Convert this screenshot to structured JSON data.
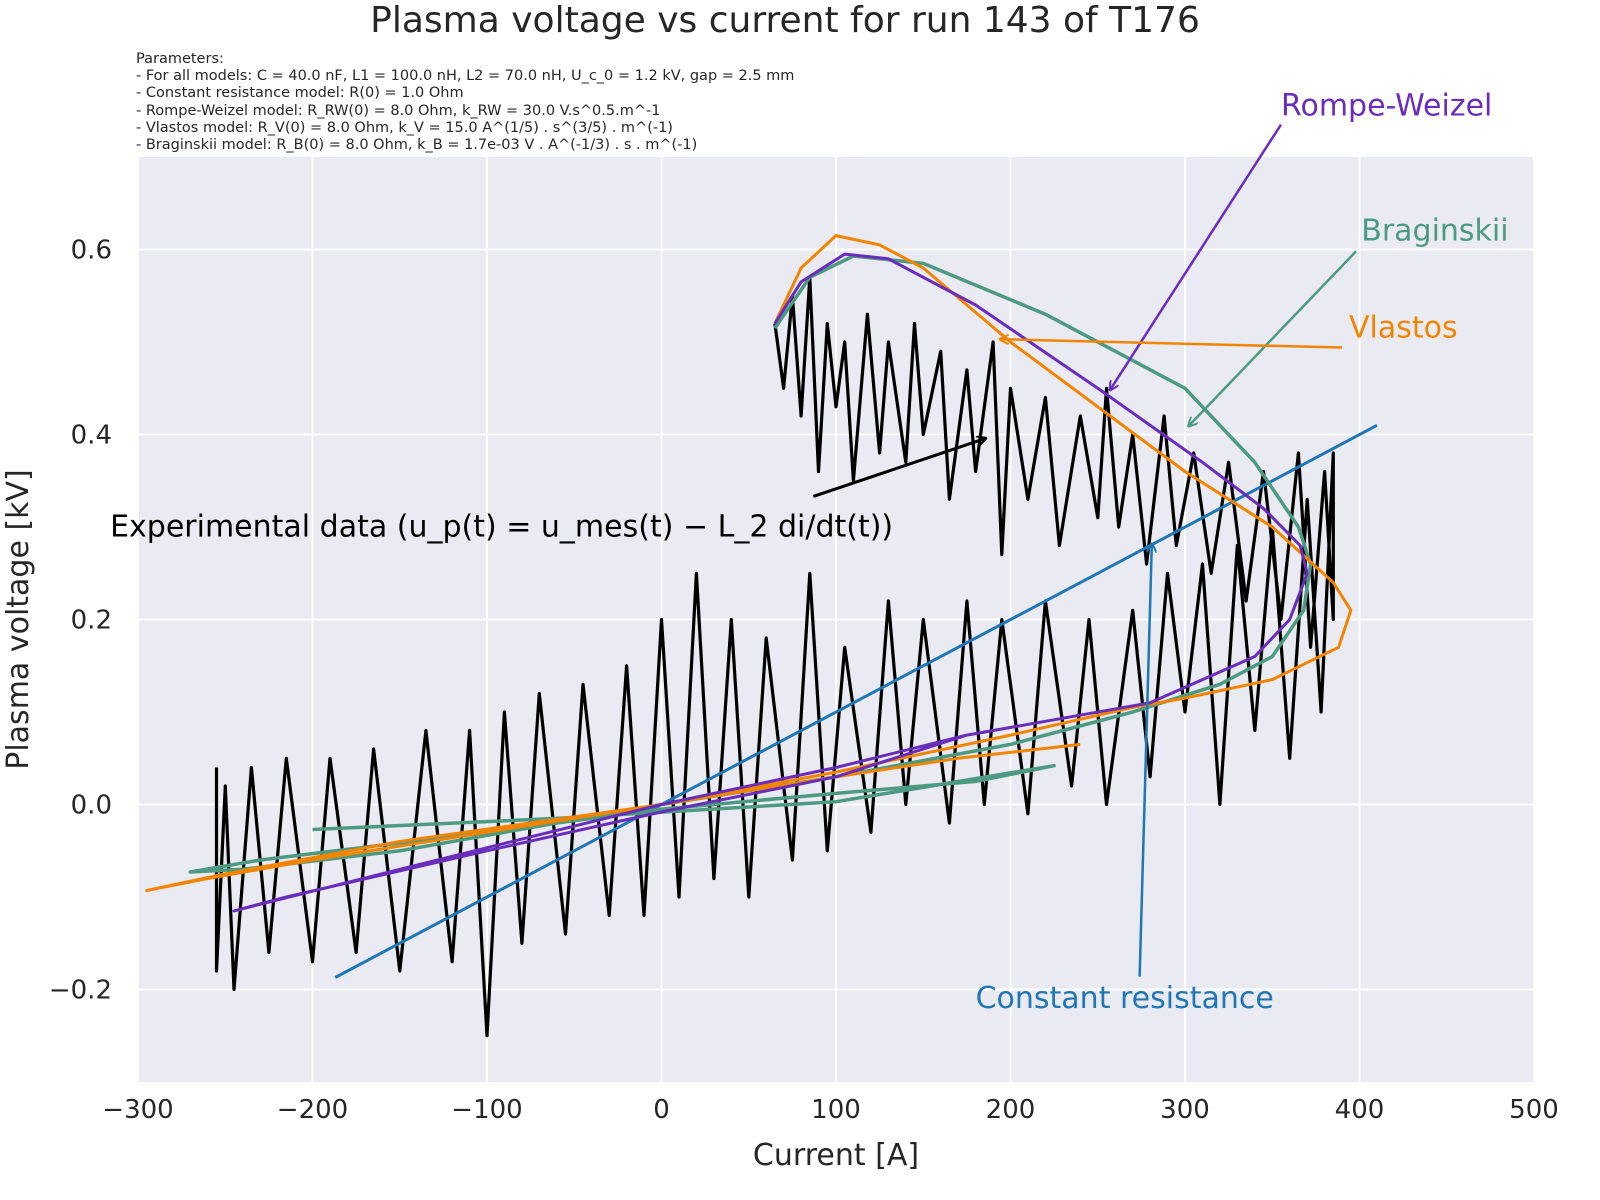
{
  "chart_data": {
    "type": "line",
    "title": "Plasma voltage vs current for run 143 of T176",
    "parameters": [
      "Parameters:",
      "- For all models: C = 40.0 nF, L1 = 100.0 nH, L2 = 70.0 nH, U_c_0 = 1.2 kV, gap = 2.5 mm",
      "- Constant resistance model: R(0) = 1.0 Ohm",
      "- Rompe-Weizel model: R_RW(0) = 8.0 Ohm, k_RW = 30.0 V.s^0.5.m^-1",
      "- Vlastos model: R_V(0) = 8.0 Ohm, k_V = 15.0 A^(1/5) . s^(3/5) . m^(-1)",
      "- Braginskii model: R_B(0) = 8.0 Ohm, k_B = 1.7e-03 V . A^(-1/3) . s . m^(-1)"
    ],
    "xlabel": "Current [A]",
    "ylabel": "Plasma voltage [kV]",
    "xlim": [
      -300,
      500
    ],
    "ylim": [
      -0.3,
      0.7
    ],
    "xticks": [
      -300,
      -200,
      -100,
      0,
      100,
      200,
      300,
      400,
      500
    ],
    "xtick_labels": [
      "−300",
      "−200",
      "−100",
      "0",
      "100",
      "200",
      "300",
      "400",
      "500"
    ],
    "yticks": [
      -0.2,
      0.0,
      0.2,
      0.4,
      0.6
    ],
    "ytick_labels": [
      "−0.2",
      "0.0",
      "0.2",
      "0.4",
      "0.6"
    ],
    "grid": true,
    "background": "#EAEAF2",
    "series": [
      {
        "id": "experimental",
        "color": "#000000",
        "width": 3.2,
        "points": [
          [
            65,
            0.52
          ],
          [
            70,
            0.45
          ],
          [
            75,
            0.55
          ],
          [
            80,
            0.42
          ],
          [
            85,
            0.57
          ],
          [
            90,
            0.36
          ],
          [
            95,
            0.52
          ],
          [
            100,
            0.43
          ],
          [
            105,
            0.5
          ],
          [
            110,
            0.35
          ],
          [
            118,
            0.53
          ],
          [
            125,
            0.38
          ],
          [
            130,
            0.5
          ],
          [
            140,
            0.37
          ],
          [
            145,
            0.52
          ],
          [
            150,
            0.4
          ],
          [
            160,
            0.49
          ],
          [
            165,
            0.33
          ],
          [
            175,
            0.47
          ],
          [
            180,
            0.36
          ],
          [
            190,
            0.5
          ],
          [
            195,
            0.27
          ],
          [
            200,
            0.45
          ],
          [
            210,
            0.33
          ],
          [
            220,
            0.44
          ],
          [
            228,
            0.28
          ],
          [
            240,
            0.42
          ],
          [
            250,
            0.31
          ],
          [
            255,
            0.45
          ],
          [
            262,
            0.3
          ],
          [
            270,
            0.4
          ],
          [
            278,
            0.26
          ],
          [
            288,
            0.42
          ],
          [
            295,
            0.28
          ],
          [
            305,
            0.38
          ],
          [
            315,
            0.25
          ],
          [
            325,
            0.37
          ],
          [
            335,
            0.22
          ],
          [
            345,
            0.36
          ],
          [
            355,
            0.2
          ],
          [
            365,
            0.38
          ],
          [
            372,
            0.17
          ],
          [
            380,
            0.36
          ],
          [
            385,
            0.2
          ],
          [
            385,
            0.38
          ],
          [
            378,
            0.1
          ],
          [
            370,
            0.33
          ],
          [
            360,
            0.05
          ],
          [
            350,
            0.3
          ],
          [
            340,
            0.08
          ],
          [
            330,
            0.28
          ],
          [
            320,
            0.0
          ],
          [
            310,
            0.26
          ],
          [
            300,
            0.1
          ],
          [
            290,
            0.25
          ],
          [
            280,
            0.03
          ],
          [
            270,
            0.21
          ],
          [
            255,
            0.0
          ],
          [
            245,
            0.2
          ],
          [
            235,
            0.02
          ],
          [
            220,
            0.22
          ],
          [
            210,
            -0.01
          ],
          [
            195,
            0.2
          ],
          [
            185,
            0.0
          ],
          [
            175,
            0.22
          ],
          [
            165,
            -0.02
          ],
          [
            150,
            0.2
          ],
          [
            140,
            0.0
          ],
          [
            130,
            0.22
          ],
          [
            120,
            -0.03
          ],
          [
            105,
            0.17
          ],
          [
            95,
            -0.05
          ],
          [
            85,
            0.25
          ],
          [
            75,
            -0.06
          ],
          [
            60,
            0.18
          ],
          [
            50,
            -0.1
          ],
          [
            40,
            0.2
          ],
          [
            30,
            -0.08
          ],
          [
            20,
            0.25
          ],
          [
            10,
            -0.1
          ],
          [
            0,
            0.2
          ],
          [
            -10,
            -0.12
          ],
          [
            -20,
            0.15
          ],
          [
            -30,
            -0.12
          ],
          [
            -45,
            0.13
          ],
          [
            -55,
            -0.14
          ],
          [
            -70,
            0.12
          ],
          [
            -80,
            -0.15
          ],
          [
            -90,
            0.1
          ],
          [
            -100,
            -0.25
          ],
          [
            -110,
            0.08
          ],
          [
            -120,
            -0.17
          ],
          [
            -135,
            0.08
          ],
          [
            -150,
            -0.18
          ],
          [
            -165,
            0.06
          ],
          [
            -175,
            -0.16
          ],
          [
            -190,
            0.05
          ],
          [
            -200,
            -0.17
          ],
          [
            -215,
            0.05
          ],
          [
            -225,
            -0.16
          ],
          [
            -235,
            0.04
          ],
          [
            -245,
            -0.2
          ],
          [
            -250,
            0.02
          ],
          [
            -255,
            -0.18
          ],
          [
            -255,
            0.04
          ]
        ]
      },
      {
        "id": "constant-resistance",
        "color": "#1F77B4",
        "width": 3,
        "points": [
          [
            -187,
            -0.187
          ],
          [
            410,
            0.41
          ]
        ]
      },
      {
        "id": "braginskii",
        "color": "#4C9A82",
        "width": 3.5,
        "points": [
          [
            65,
            0.515
          ],
          [
            85,
            0.57
          ],
          [
            110,
            0.593
          ],
          [
            150,
            0.585
          ],
          [
            220,
            0.53
          ],
          [
            300,
            0.45
          ],
          [
            340,
            0.37
          ],
          [
            365,
            0.3
          ],
          [
            372,
            0.26
          ],
          [
            368,
            0.21
          ],
          [
            350,
            0.16
          ],
          [
            320,
            0.13
          ],
          [
            270,
            0.1
          ],
          [
            200,
            0.065
          ],
          [
            100,
            0.03
          ],
          [
            0,
            0
          ],
          [
            -150,
            -0.05
          ],
          [
            -240,
            -0.07
          ],
          [
            -270,
            -0.073
          ],
          [
            -230,
            -0.06
          ],
          [
            -100,
            -0.03
          ],
          [
            0,
            -0.005
          ],
          [
            100,
            0.012
          ],
          [
            180,
            0.025
          ],
          [
            225,
            0.042
          ],
          [
            100,
            0.003
          ],
          [
            -60,
            -0.015
          ],
          [
            -200,
            -0.027
          ]
        ]
      },
      {
        "id": "vlastos",
        "color": "#F28500",
        "width": 3,
        "points": [
          [
            65,
            0.52
          ],
          [
            80,
            0.58
          ],
          [
            100,
            0.615
          ],
          [
            125,
            0.605
          ],
          [
            150,
            0.58
          ],
          [
            200,
            0.5
          ],
          [
            250,
            0.43
          ],
          [
            300,
            0.36
          ],
          [
            350,
            0.3
          ],
          [
            385,
            0.24
          ],
          [
            395,
            0.21
          ],
          [
            388,
            0.17
          ],
          [
            350,
            0.135
          ],
          [
            300,
            0.115
          ],
          [
            270,
            0.105
          ],
          [
            200,
            0.075
          ],
          [
            100,
            0.035
          ],
          [
            0,
            0
          ],
          [
            -200,
            -0.06
          ],
          [
            -260,
            -0.08
          ],
          [
            -295,
            -0.093
          ],
          [
            -250,
            -0.075
          ],
          [
            -150,
            -0.04
          ],
          [
            0,
            0
          ],
          [
            100,
            0.03
          ],
          [
            170,
            0.05
          ],
          [
            240,
            0.065
          ]
        ]
      },
      {
        "id": "rompe-weizel",
        "color": "#6A2DBB",
        "width": 3,
        "points": [
          [
            65,
            0.52
          ],
          [
            80,
            0.565
          ],
          [
            105,
            0.595
          ],
          [
            130,
            0.59
          ],
          [
            180,
            0.54
          ],
          [
            250,
            0.45
          ],
          [
            310,
            0.37
          ],
          [
            345,
            0.32
          ],
          [
            366,
            0.28
          ],
          [
            370,
            0.25
          ],
          [
            360,
            0.2
          ],
          [
            340,
            0.16
          ],
          [
            280,
            0.11
          ],
          [
            220,
            0.09
          ],
          [
            175,
            0.075
          ],
          [
            100,
            0.04
          ],
          [
            0,
            0
          ],
          [
            -150,
            -0.07
          ],
          [
            -245,
            -0.115
          ],
          [
            -215,
            -0.1
          ],
          [
            -100,
            -0.05
          ],
          [
            0,
            -0.008
          ],
          [
            100,
            0.03
          ],
          [
            175,
            0.075
          ]
        ]
      }
    ],
    "annotations": [
      {
        "id": "rompe-weizel",
        "text": "Rompe-Weizel",
        "color": "#6A2DBB",
        "xytext": [
          355,
          0.745
        ],
        "arrow_from": [
          355,
          0.735
        ],
        "arrow_to": [
          257,
          0.448
        ]
      },
      {
        "id": "braginskii",
        "text": "Braginskii",
        "color": "#4C9A82",
        "xytext": [
          401,
          0.61
        ],
        "arrow_from": [
          398,
          0.598
        ],
        "arrow_to": [
          302,
          0.409
        ]
      },
      {
        "id": "vlastos",
        "text": "Vlastos",
        "color": "#F28500",
        "xytext": [
          394,
          0.505
        ],
        "arrow_from": [
          390,
          0.494
        ],
        "arrow_to": [
          194,
          0.503
        ]
      },
      {
        "id": "constant-resistance",
        "text": "Constant resistance",
        "color": "#1F77B4",
        "xytext": [
          180,
          -0.22
        ],
        "arrow_from": [
          274,
          -0.186
        ],
        "arrow_to": [
          281,
          0.282
        ]
      },
      {
        "id": "experimental",
        "text": "Experimental data (u_p(t) = u_mes(t) − L_2 di/dt(t))",
        "color": "#000000",
        "xytext": [
          -316,
          0.29
        ],
        "arrow_from": [
          87,
          0.333
        ],
        "arrow_to": [
          186,
          0.396
        ]
      }
    ]
  }
}
